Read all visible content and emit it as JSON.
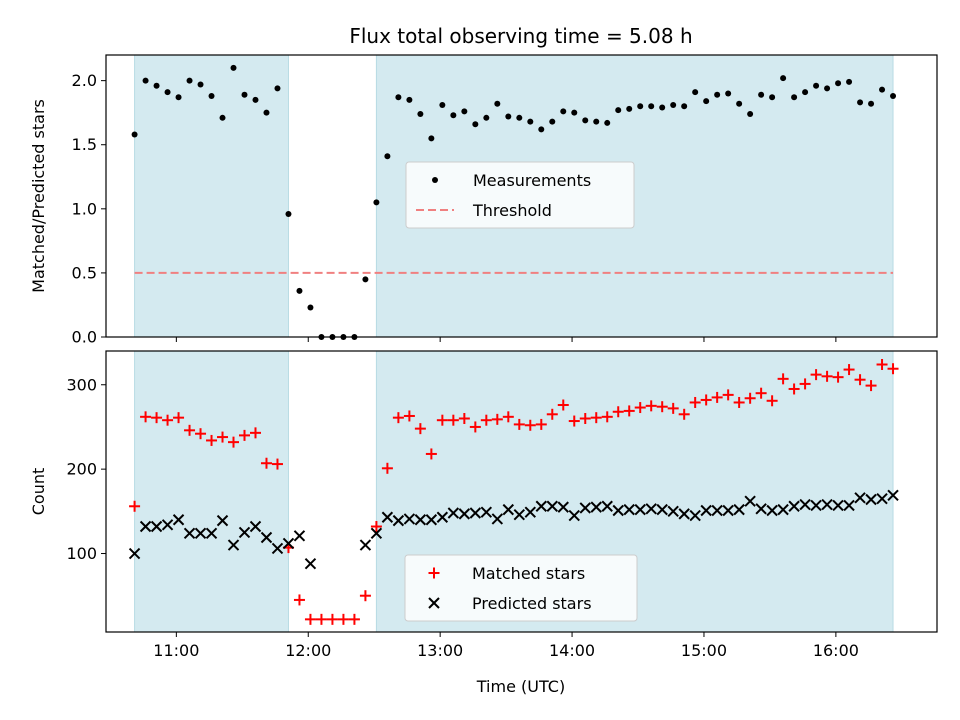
{
  "chart_data": {
    "type": "scatter",
    "title": "Flux total observing time = 5.08 h",
    "xlabel": "Time (UTC)",
    "xlim": [
      "10:28",
      "16:46"
    ],
    "x_ticks": [
      "11:00",
      "12:00",
      "13:00",
      "14:00",
      "15:00",
      "16:00"
    ],
    "shaded_intervals": [
      [
        "10:41",
        "11:51"
      ],
      [
        "12:31",
        "16:26"
      ]
    ],
    "shade_color": "#d4eaf0",
    "panels": [
      {
        "ylabel": "Matched/Predicted stars",
        "ylim": [
          0,
          2.2
        ],
        "y_ticks": [
          "0.0",
          "0.5",
          "1.0",
          "1.5",
          "2.0"
        ],
        "legend_position": "center",
        "series": [
          {
            "name": "Measurements",
            "marker": "dot",
            "color": "#000000",
            "points": [
              [
                "10:41",
                1.58
              ],
              [
                "10:46",
                2.0
              ],
              [
                "10:51",
                1.96
              ],
              [
                "10:56",
                1.91
              ],
              [
                "11:01",
                1.87
              ],
              [
                "11:06",
                2.0
              ],
              [
                "11:11",
                1.97
              ],
              [
                "11:16",
                1.88
              ],
              [
                "11:21",
                1.71
              ],
              [
                "11:26",
                2.1
              ],
              [
                "11:31",
                1.89
              ],
              [
                "11:36",
                1.85
              ],
              [
                "11:41",
                1.75
              ],
              [
                "11:46",
                1.94
              ],
              [
                "11:51",
                0.96
              ],
              [
                "11:56",
                0.36
              ],
              [
                "12:01",
                0.23
              ],
              [
                "12:06",
                0.0
              ],
              [
                "12:11",
                0.0
              ],
              [
                "12:16",
                0.0
              ],
              [
                "12:21",
                0.0
              ],
              [
                "12:26",
                0.45
              ],
              [
                "12:31",
                1.05
              ],
              [
                "12:36",
                1.41
              ],
              [
                "12:41",
                1.87
              ],
              [
                "12:46",
                1.85
              ],
              [
                "12:51",
                1.74
              ],
              [
                "12:56",
                1.55
              ],
              [
                "13:01",
                1.81
              ],
              [
                "13:06",
                1.73
              ],
              [
                "13:11",
                1.76
              ],
              [
                "13:16",
                1.66
              ],
              [
                "13:21",
                1.71
              ],
              [
                "13:26",
                1.82
              ],
              [
                "13:31",
                1.72
              ],
              [
                "13:36",
                1.71
              ],
              [
                "13:41",
                1.68
              ],
              [
                "13:46",
                1.62
              ],
              [
                "13:51",
                1.68
              ],
              [
                "13:56",
                1.76
              ],
              [
                "14:01",
                1.75
              ],
              [
                "14:06",
                1.69
              ],
              [
                "14:11",
                1.68
              ],
              [
                "14:16",
                1.67
              ],
              [
                "14:21",
                1.77
              ],
              [
                "14:26",
                1.78
              ],
              [
                "14:31",
                1.8
              ],
              [
                "14:36",
                1.8
              ],
              [
                "14:41",
                1.79
              ],
              [
                "14:46",
                1.81
              ],
              [
                "14:51",
                1.8
              ],
              [
                "14:56",
                1.91
              ],
              [
                "15:01",
                1.84
              ],
              [
                "15:06",
                1.89
              ],
              [
                "15:11",
                1.9
              ],
              [
                "15:16",
                1.82
              ],
              [
                "15:21",
                1.74
              ],
              [
                "15:26",
                1.89
              ],
              [
                "15:31",
                1.87
              ],
              [
                "15:36",
                2.02
              ],
              [
                "15:41",
                1.87
              ],
              [
                "15:46",
                1.91
              ],
              [
                "15:51",
                1.96
              ],
              [
                "15:56",
                1.94
              ],
              [
                "16:01",
                1.98
              ],
              [
                "16:06",
                1.99
              ],
              [
                "16:11",
                1.83
              ],
              [
                "16:16",
                1.82
              ],
              [
                "16:21",
                1.93
              ],
              [
                "16:26",
                1.88
              ]
            ]
          },
          {
            "name": "Threshold",
            "marker": "dashed-line",
            "color": "#f08080",
            "points": [
              [
                "10:41",
                0.5
              ],
              [
                "16:26",
                0.5
              ]
            ]
          }
        ]
      },
      {
        "ylabel": "Count",
        "ylim": [
          7,
          340
        ],
        "y_ticks": [
          "100",
          "200",
          "300"
        ],
        "legend_position": "lower center",
        "series": [
          {
            "name": "Matched stars",
            "marker": "plus",
            "color": "#ff0000",
            "points": [
              [
                "10:41",
                156
              ],
              [
                "10:46",
                262
              ],
              [
                "10:51",
                261
              ],
              [
                "10:56",
                258
              ],
              [
                "11:01",
                261
              ],
              [
                "11:06",
                246
              ],
              [
                "11:11",
                242
              ],
              [
                "11:16",
                234
              ],
              [
                "11:21",
                238
              ],
              [
                "11:26",
                232
              ],
              [
                "11:31",
                240
              ],
              [
                "11:36",
                243
              ],
              [
                "11:41",
                207
              ],
              [
                "11:46",
                206
              ],
              [
                "11:51",
                107
              ],
              [
                "11:56",
                45
              ],
              [
                "12:01",
                22
              ],
              [
                "12:06",
                22
              ],
              [
                "12:11",
                22
              ],
              [
                "12:16",
                22
              ],
              [
                "12:21",
                22
              ],
              [
                "12:26",
                50
              ],
              [
                "12:31",
                132
              ],
              [
                "12:36",
                201
              ],
              [
                "12:41",
                261
              ],
              [
                "12:46",
                263
              ],
              [
                "12:51",
                248
              ],
              [
                "12:56",
                218
              ],
              [
                "13:01",
                258
              ],
              [
                "13:06",
                258
              ],
              [
                "13:11",
                260
              ],
              [
                "13:16",
                250
              ],
              [
                "13:21",
                258
              ],
              [
                "13:26",
                259
              ],
              [
                "13:31",
                262
              ],
              [
                "13:36",
                253
              ],
              [
                "13:41",
                252
              ],
              [
                "13:46",
                253
              ],
              [
                "13:51",
                265
              ],
              [
                "13:56",
                276
              ],
              [
                "14:01",
                257
              ],
              [
                "14:06",
                260
              ],
              [
                "14:11",
                261
              ],
              [
                "14:16",
                262
              ],
              [
                "14:21",
                268
              ],
              [
                "14:26",
                269
              ],
              [
                "14:31",
                273
              ],
              [
                "14:36",
                275
              ],
              [
                "14:41",
                274
              ],
              [
                "14:46",
                272
              ],
              [
                "14:51",
                265
              ],
              [
                "14:56",
                279
              ],
              [
                "15:01",
                282
              ],
              [
                "15:06",
                285
              ],
              [
                "15:11",
                288
              ],
              [
                "15:16",
                279
              ],
              [
                "15:21",
                284
              ],
              [
                "15:26",
                290
              ],
              [
                "15:31",
                281
              ],
              [
                "15:36",
                307
              ],
              [
                "15:41",
                295
              ],
              [
                "15:46",
                301
              ],
              [
                "15:51",
                312
              ],
              [
                "15:56",
                310
              ],
              [
                "16:01",
                309
              ],
              [
                "16:06",
                318
              ],
              [
                "16:11",
                306
              ],
              [
                "16:16",
                299
              ],
              [
                "16:21",
                324
              ],
              [
                "16:26",
                319
              ]
            ]
          },
          {
            "name": "Predicted stars",
            "marker": "x",
            "color": "#000000",
            "points": [
              [
                "10:41",
                100
              ],
              [
                "10:46",
                132
              ],
              [
                "10:51",
                132
              ],
              [
                "10:56",
                134
              ],
              [
                "11:01",
                140
              ],
              [
                "11:06",
                124
              ],
              [
                "11:11",
                124
              ],
              [
                "11:16",
                124
              ],
              [
                "11:21",
                139
              ],
              [
                "11:26",
                110
              ],
              [
                "11:31",
                125
              ],
              [
                "11:36",
                132
              ],
              [
                "11:41",
                119
              ],
              [
                "11:46",
                106
              ],
              [
                "11:51",
                112
              ],
              [
                "11:56",
                121
              ],
              [
                "12:01",
                88
              ],
              [
                "12:26",
                110
              ],
              [
                "12:31",
                124
              ],
              [
                "12:36",
                143
              ],
              [
                "12:41",
                139
              ],
              [
                "12:46",
                141
              ],
              [
                "12:51",
                140
              ],
              [
                "12:56",
                140
              ],
              [
                "13:01",
                143
              ],
              [
                "13:06",
                148
              ],
              [
                "13:11",
                147
              ],
              [
                "13:16",
                148
              ],
              [
                "13:21",
                149
              ],
              [
                "13:26",
                141
              ],
              [
                "13:31",
                152
              ],
              [
                "13:36",
                146
              ],
              [
                "13:41",
                149
              ],
              [
                "13:46",
                156
              ],
              [
                "13:51",
                156
              ],
              [
                "13:56",
                155
              ],
              [
                "14:01",
                145
              ],
              [
                "14:06",
                154
              ],
              [
                "14:11",
                155
              ],
              [
                "14:16",
                156
              ],
              [
                "14:21",
                151
              ],
              [
                "14:26",
                152
              ],
              [
                "14:31",
                152
              ],
              [
                "14:36",
                153
              ],
              [
                "14:41",
                152
              ],
              [
                "14:46",
                150
              ],
              [
                "14:51",
                147
              ],
              [
                "14:56",
                145
              ],
              [
                "15:01",
                151
              ],
              [
                "15:06",
                151
              ],
              [
                "15:11",
                151
              ],
              [
                "15:16",
                152
              ],
              [
                "15:21",
                162
              ],
              [
                "15:26",
                153
              ],
              [
                "15:31",
                151
              ],
              [
                "15:36",
                152
              ],
              [
                "15:41",
                156
              ],
              [
                "15:46",
                158
              ],
              [
                "15:51",
                157
              ],
              [
                "15:56",
                158
              ],
              [
                "16:01",
                157
              ],
              [
                "16:06",
                157
              ],
              [
                "16:11",
                166
              ],
              [
                "16:16",
                164
              ],
              [
                "16:21",
                165
              ],
              [
                "16:26",
                169
              ]
            ]
          }
        ]
      }
    ]
  }
}
